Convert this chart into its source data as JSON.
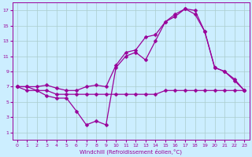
{
  "xlabel": "Windchill (Refroidissement éolien,°C)",
  "bg_color": "#cceeff",
  "line_color": "#990099",
  "grid_color": "#aacccc",
  "ylim": [
    0,
    18
  ],
  "xlim": [
    -0.5,
    23.5
  ],
  "yticks": [
    1,
    3,
    5,
    7,
    9,
    11,
    13,
    15,
    17
  ],
  "xticks": [
    0,
    1,
    2,
    3,
    4,
    5,
    6,
    7,
    8,
    9,
    10,
    11,
    12,
    13,
    14,
    15,
    16,
    17,
    18,
    19,
    20,
    21,
    22,
    23
  ],
  "series": [
    {
      "x": [
        0,
        1,
        2,
        3,
        4,
        5,
        6,
        7,
        8,
        9,
        10,
        11,
        12,
        13,
        14,
        15,
        16,
        17,
        18,
        19,
        20,
        21,
        22,
        23
      ],
      "y": [
        7.0,
        7.0,
        6.5,
        6.5,
        6.0,
        6.0,
        6.0,
        6.0,
        6.0,
        6.0,
        6.0,
        6.0,
        6.0,
        6.0,
        6.0,
        6.5,
        6.5,
        6.5,
        6.5,
        6.5,
        6.5,
        6.5,
        6.5,
        6.5
      ]
    },
    {
      "x": [
        0,
        1,
        2,
        3,
        4,
        5,
        6,
        7,
        8,
        9,
        10,
        11,
        12,
        13,
        14,
        15,
        16,
        17,
        18,
        19,
        20,
        21,
        22,
        23
      ],
      "y": [
        7.0,
        6.5,
        6.5,
        5.8,
        5.5,
        5.5,
        3.8,
        2.0,
        2.5,
        2.0,
        9.5,
        11.0,
        11.5,
        10.5,
        13.0,
        15.5,
        16.2,
        17.2,
        17.0,
        14.2,
        9.5,
        9.0,
        8.0,
        6.5
      ]
    },
    {
      "x": [
        0,
        1,
        2,
        3,
        4,
        5,
        6,
        7,
        8,
        9,
        10,
        11,
        12,
        13,
        14,
        15,
        16,
        17,
        18,
        19,
        20,
        21,
        22,
        23
      ],
      "y": [
        7.0,
        7.0,
        7.0,
        7.2,
        6.8,
        6.5,
        6.5,
        7.0,
        7.2,
        7.0,
        9.8,
        11.5,
        11.8,
        13.5,
        13.8,
        15.5,
        16.5,
        17.2,
        16.5,
        14.2,
        9.5,
        9.0,
        7.8,
        6.5
      ]
    }
  ]
}
